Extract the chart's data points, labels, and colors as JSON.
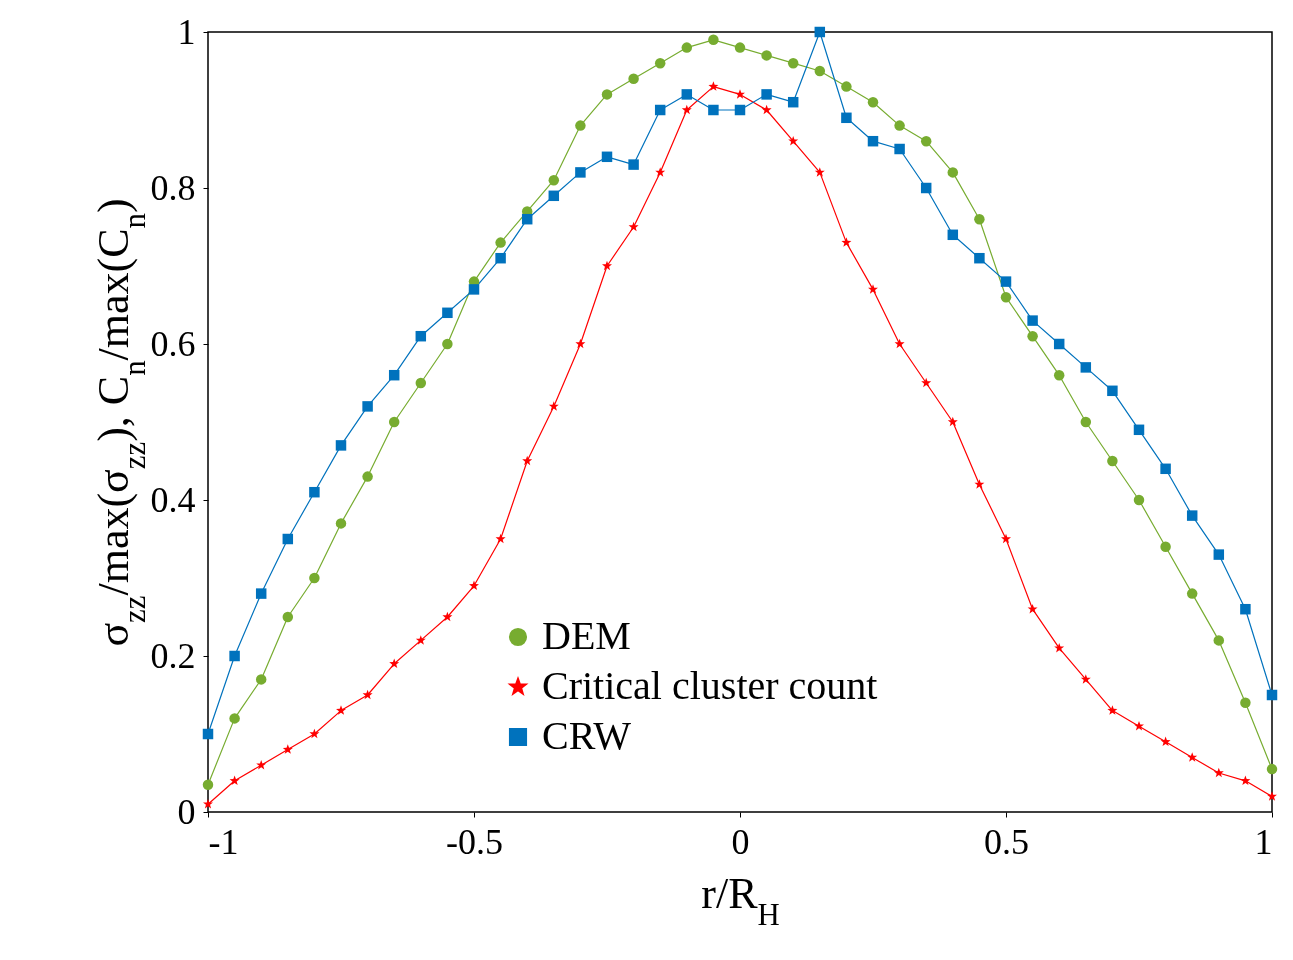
{
  "chart_data": {
    "type": "line",
    "xlabel": "r/R$_{H}$",
    "ylabel": "σ$_{zz}$/max(σ$_{zz}$), C$_{n}$/max(C$_{n}$)",
    "xlim": [
      -1,
      1
    ],
    "ylim": [
      0,
      1
    ],
    "xticks": [
      -1,
      -0.5,
      0,
      0.5,
      1
    ],
    "yticks": [
      0,
      0.2,
      0.4,
      0.6,
      0.8,
      1
    ],
    "legend": "bottom",
    "line_style": "solid",
    "series": [
      {
        "name": "DEM",
        "color": "#77ac30",
        "marker": "circle",
        "x": [
          -1,
          -0.95,
          -0.9,
          -0.85,
          -0.8,
          -0.75,
          -0.7,
          -0.65,
          -0.6,
          -0.55,
          -0.5,
          -0.45,
          -0.4,
          -0.35,
          -0.3,
          -0.25,
          -0.2,
          -0.15,
          -0.1,
          -0.05,
          0,
          0.05,
          0.1,
          0.15,
          0.2,
          0.25,
          0.3,
          0.35,
          0.4,
          0.45,
          0.5,
          0.55,
          0.6,
          0.65,
          0.7,
          0.75,
          0.8,
          0.85,
          0.9,
          0.95,
          1
        ],
        "values": [
          0.035,
          0.12,
          0.17,
          0.25,
          0.3,
          0.37,
          0.43,
          0.5,
          0.55,
          0.6,
          0.68,
          0.73,
          0.77,
          0.81,
          0.88,
          0.92,
          0.94,
          0.96,
          0.98,
          0.99,
          0.98,
          0.97,
          0.96,
          0.95,
          0.93,
          0.91,
          0.88,
          0.86,
          0.82,
          0.76,
          0.66,
          0.61,
          0.56,
          0.5,
          0.45,
          0.4,
          0.34,
          0.28,
          0.22,
          0.14,
          0.055
        ]
      },
      {
        "name": "Critical cluster count",
        "color": "#ff0000",
        "marker": "star",
        "x": [
          -1,
          -0.95,
          -0.9,
          -0.85,
          -0.8,
          -0.75,
          -0.7,
          -0.65,
          -0.6,
          -0.55,
          -0.5,
          -0.45,
          -0.4,
          -0.35,
          -0.3,
          -0.25,
          -0.2,
          -0.15,
          -0.1,
          -0.05,
          0,
          0.05,
          0.1,
          0.15,
          0.2,
          0.25,
          0.3,
          0.35,
          0.4,
          0.45,
          0.5,
          0.55,
          0.6,
          0.65,
          0.7,
          0.75,
          0.8,
          0.85,
          0.9,
          0.95,
          1
        ],
        "values": [
          0.01,
          0.04,
          0.06,
          0.08,
          0.1,
          0.13,
          0.15,
          0.19,
          0.22,
          0.25,
          0.29,
          0.35,
          0.45,
          0.52,
          0.6,
          0.7,
          0.75,
          0.82,
          0.9,
          0.93,
          0.92,
          0.9,
          0.86,
          0.82,
          0.73,
          0.67,
          0.6,
          0.55,
          0.5,
          0.42,
          0.35,
          0.26,
          0.21,
          0.17,
          0.13,
          0.11,
          0.09,
          0.07,
          0.05,
          0.04,
          0.02
        ]
      },
      {
        "name": "CRW",
        "color": "#0072bd",
        "marker": "square",
        "x": [
          -1,
          -0.95,
          -0.9,
          -0.85,
          -0.8,
          -0.75,
          -0.7,
          -0.65,
          -0.6,
          -0.55,
          -0.5,
          -0.45,
          -0.4,
          -0.35,
          -0.3,
          -0.25,
          -0.2,
          -0.15,
          -0.1,
          -0.05,
          0,
          0.05,
          0.1,
          0.15,
          0.2,
          0.25,
          0.3,
          0.35,
          0.4,
          0.45,
          0.5,
          0.55,
          0.6,
          0.65,
          0.7,
          0.75,
          0.8,
          0.85,
          0.9,
          0.95,
          1
        ],
        "values": [
          0.1,
          0.2,
          0.28,
          0.35,
          0.41,
          0.47,
          0.52,
          0.56,
          0.61,
          0.64,
          0.67,
          0.71,
          0.76,
          0.79,
          0.82,
          0.84,
          0.83,
          0.9,
          0.92,
          0.9,
          0.9,
          0.92,
          0.91,
          1.0,
          0.89,
          0.86,
          0.85,
          0.8,
          0.74,
          0.71,
          0.68,
          0.63,
          0.6,
          0.57,
          0.54,
          0.49,
          0.44,
          0.38,
          0.33,
          0.26,
          0.15
        ]
      }
    ]
  }
}
